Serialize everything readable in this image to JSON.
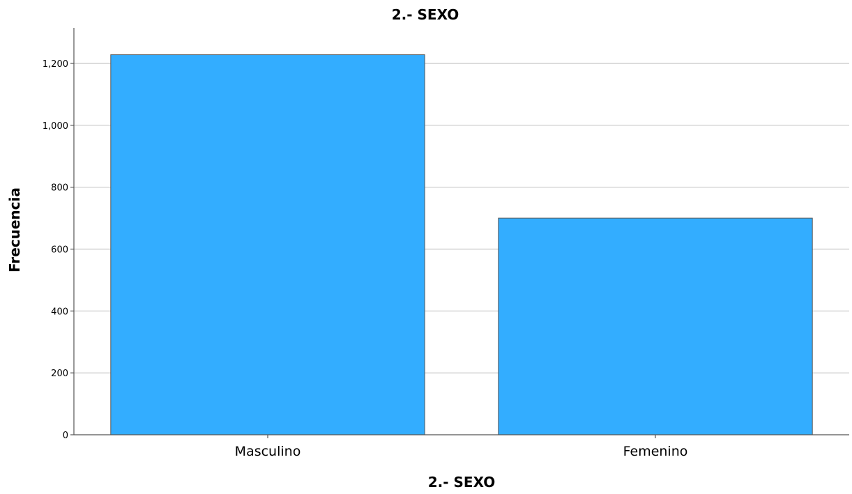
{
  "chart_data": {
    "type": "bar",
    "title": "2.- SEXO",
    "xlabel": "2.- SEXO",
    "ylabel": "Frecuencia",
    "categories": [
      "Masculino",
      "Femenino"
    ],
    "values": [
      1228,
      700
    ],
    "ylim": [
      0,
      1200
    ],
    "yticks": [
      0,
      200,
      400,
      600,
      800,
      1000,
      1200
    ],
    "ytick_labels": [
      "0",
      "200",
      "400",
      "600",
      "800",
      "1,000",
      "1,200"
    ],
    "grid": true,
    "bar_color": "#33adff"
  }
}
